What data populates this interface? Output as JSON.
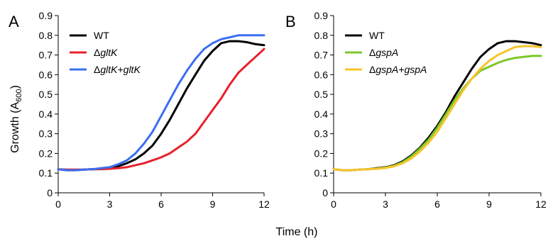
{
  "figure": {
    "ylabel_main": "Growth (A",
    "ylabel_sub": "600",
    "ylabel_end": ")",
    "xlabel": "Time (h)"
  },
  "chart_data": [
    {
      "type": "line",
      "panel": "A",
      "xlim": [
        0,
        12
      ],
      "ylim": [
        0,
        0.9
      ],
      "xticks": [
        "0",
        "3",
        "6",
        "9",
        "12"
      ],
      "yticks": [
        "0",
        "0.1",
        "0.2",
        "0.3",
        "0.4",
        "0.5",
        "0.6",
        "0.7",
        "0.8",
        "0.9"
      ],
      "ylabel": "Growth (A600)",
      "xlabel": "Time (h)",
      "grid": false,
      "legend_position": "top-left",
      "x": [
        0,
        0.5,
        1,
        1.5,
        2,
        2.5,
        3,
        3.5,
        4,
        4.5,
        5,
        5.5,
        6,
        6.5,
        7,
        7.5,
        8,
        8.5,
        9,
        9.5,
        10,
        10.5,
        11,
        11.5,
        12
      ],
      "series": [
        {
          "name": "WT",
          "legend_parts": [
            {
              "text": "WT",
              "italic": false
            }
          ],
          "color": "#000000",
          "values": [
            0.12,
            0.115,
            0.115,
            0.118,
            0.12,
            0.122,
            0.125,
            0.135,
            0.15,
            0.17,
            0.2,
            0.24,
            0.3,
            0.37,
            0.45,
            0.53,
            0.6,
            0.67,
            0.72,
            0.76,
            0.77,
            0.77,
            0.765,
            0.755,
            0.75
          ]
        },
        {
          "name": "ΔgltK",
          "legend_parts": [
            {
              "text": "Δ",
              "italic": false
            },
            {
              "text": "gltK",
              "italic": true
            }
          ],
          "color": "#e8202a",
          "values": [
            0.12,
            0.118,
            0.118,
            0.118,
            0.12,
            0.12,
            0.122,
            0.125,
            0.13,
            0.14,
            0.15,
            0.165,
            0.18,
            0.2,
            0.23,
            0.26,
            0.3,
            0.36,
            0.42,
            0.48,
            0.55,
            0.61,
            0.65,
            0.69,
            0.73
          ]
        },
        {
          "name": "ΔgltK+gltK",
          "legend_parts": [
            {
              "text": "Δ",
              "italic": false
            },
            {
              "text": "gltK+gltK",
              "italic": true
            }
          ],
          "color": "#3b6ef0",
          "values": [
            0.12,
            0.115,
            0.115,
            0.118,
            0.12,
            0.125,
            0.13,
            0.145,
            0.165,
            0.2,
            0.25,
            0.31,
            0.39,
            0.47,
            0.55,
            0.62,
            0.68,
            0.73,
            0.76,
            0.78,
            0.79,
            0.8,
            0.8,
            0.8,
            0.8
          ]
        }
      ]
    },
    {
      "type": "line",
      "panel": "B",
      "xlim": [
        0,
        12
      ],
      "ylim": [
        0,
        0.9
      ],
      "xticks": [
        "0",
        "3",
        "6",
        "9",
        "12"
      ],
      "yticks": [
        "0",
        "0.1",
        "0.2",
        "0.3",
        "0.4",
        "0.5",
        "0.6",
        "0.7",
        "0.8",
        "0.9"
      ],
      "xlabel": "Time (h)",
      "grid": false,
      "legend_position": "top-left",
      "x": [
        0,
        0.5,
        1,
        1.5,
        2,
        2.5,
        3,
        3.5,
        4,
        4.5,
        5,
        5.5,
        6,
        6.5,
        7,
        7.5,
        8,
        8.5,
        9,
        9.5,
        10,
        10.5,
        11,
        11.5,
        12
      ],
      "series": [
        {
          "name": "WT",
          "legend_parts": [
            {
              "text": "WT",
              "italic": false
            }
          ],
          "color": "#000000",
          "values": [
            0.12,
            0.115,
            0.115,
            0.118,
            0.12,
            0.125,
            0.13,
            0.14,
            0.16,
            0.19,
            0.23,
            0.28,
            0.34,
            0.41,
            0.49,
            0.56,
            0.63,
            0.69,
            0.73,
            0.76,
            0.77,
            0.77,
            0.765,
            0.76,
            0.75
          ]
        },
        {
          "name": "ΔgspA",
          "legend_parts": [
            {
              "text": "Δ",
              "italic": false
            },
            {
              "text": "gspA",
              "italic": true
            }
          ],
          "color": "#7cc72a",
          "values": [
            0.12,
            0.115,
            0.115,
            0.118,
            0.12,
            0.123,
            0.128,
            0.137,
            0.155,
            0.185,
            0.225,
            0.27,
            0.33,
            0.4,
            0.47,
            0.53,
            0.58,
            0.62,
            0.64,
            0.66,
            0.675,
            0.685,
            0.69,
            0.695,
            0.695
          ]
        },
        {
          "name": "ΔgspA+gspA",
          "legend_parts": [
            {
              "text": "Δ",
              "italic": false
            },
            {
              "text": "gspA+gspA",
              "italic": true
            }
          ],
          "color": "#f7c42a",
          "values": [
            0.12,
            0.115,
            0.115,
            0.118,
            0.12,
            0.122,
            0.126,
            0.135,
            0.15,
            0.175,
            0.21,
            0.255,
            0.31,
            0.38,
            0.45,
            0.52,
            0.58,
            0.63,
            0.67,
            0.7,
            0.72,
            0.74,
            0.745,
            0.745,
            0.74
          ]
        }
      ]
    }
  ]
}
